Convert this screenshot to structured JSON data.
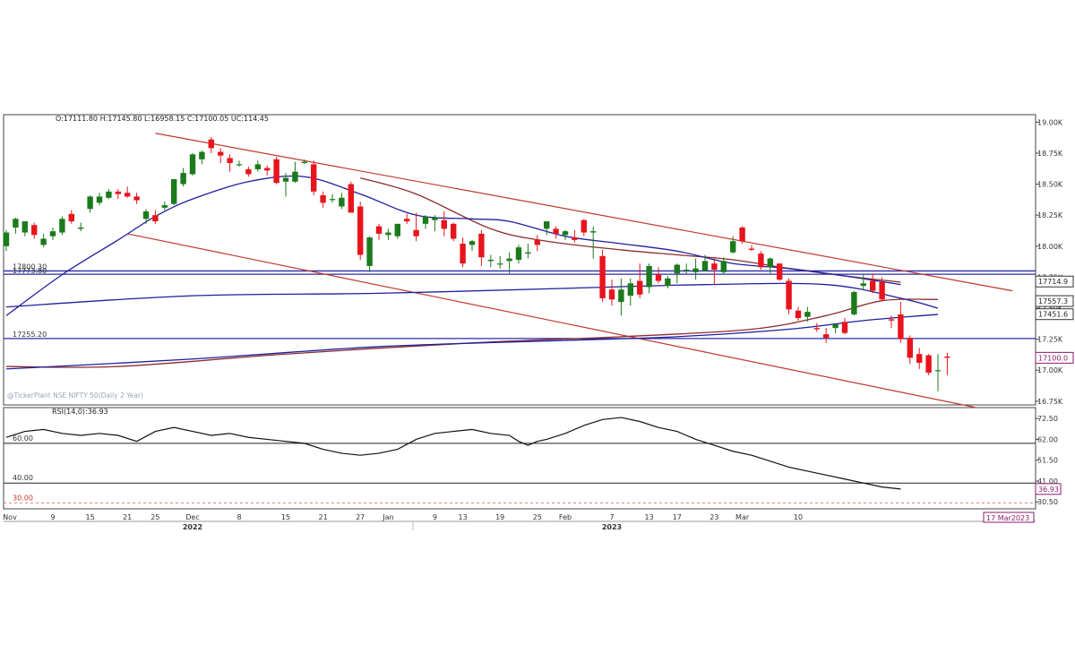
{
  "header": {
    "ohlc": "O:17111.80  H:17145.80  L:16958.15  C:17100.05  UC:114.45"
  },
  "watermark": "@TickerPlant NSE NIFTY 50(Daily 2 Year)",
  "rsi_header": "RSI(14,0):36.93",
  "colors": {
    "up": "#1b7a1b",
    "down": "#e8141c",
    "ma_brown": "#8b2d2d",
    "ma_blue": "#1f1f9e",
    "channel": "#c0392b",
    "hline": "#2a2aa8",
    "tag_border": "#8b1a6b",
    "text": "#333333"
  },
  "chart_data": [
    {
      "type": "candlestick",
      "title": "NSE NIFTY 50 (Daily)",
      "ylim": [
        16720,
        19060
      ],
      "y_ticks": [
        "19.00K",
        "18.75K",
        "18.50K",
        "18.25K",
        "18.00K",
        "17.75K",
        "17.50K",
        "17.25K",
        "17.00K",
        "16.75K"
      ],
      "y_tick_values": [
        19000,
        18750,
        18500,
        18250,
        18000,
        17750,
        17500,
        17250,
        17000,
        16750
      ],
      "x_tick_labels": [
        "Nov",
        "9",
        "15",
        "21",
        "25",
        "Dec",
        "8",
        "15",
        "21",
        "27",
        "Jan",
        "9",
        "13",
        "19",
        "25",
        "Feb",
        "7",
        "13",
        "17",
        "23",
        "Mar",
        "10"
      ],
      "x_tick_index": [
        0,
        5,
        9,
        13,
        16,
        20,
        25,
        30,
        34,
        38,
        41,
        46,
        49,
        53,
        57,
        60,
        65,
        69,
        72,
        76,
        79,
        85
      ],
      "year_labels": [
        "2022",
        "2023"
      ],
      "year_label_index": [
        20,
        65
      ],
      "date_tag": "17 Mar2023",
      "candles": [
        [
          18000,
          18130,
          17960,
          18110
        ],
        [
          18150,
          18230,
          18100,
          18220
        ],
        [
          18110,
          18200,
          18080,
          18200
        ],
        [
          18170,
          18190,
          18060,
          18090
        ],
        [
          18010,
          18100,
          17990,
          18060
        ],
        [
          18080,
          18150,
          18050,
          18120
        ],
        [
          18110,
          18240,
          18090,
          18220
        ],
        [
          18260,
          18290,
          18180,
          18200
        ],
        [
          18140,
          18190,
          18120,
          18150
        ],
        [
          18300,
          18410,
          18270,
          18400
        ],
        [
          18350,
          18430,
          18330,
          18400
        ],
        [
          18390,
          18460,
          18380,
          18440
        ],
        [
          18440,
          18460,
          18380,
          18420
        ],
        [
          18430,
          18480,
          18390,
          18400
        ],
        [
          18400,
          18430,
          18340,
          18370
        ],
        [
          18220,
          18300,
          18180,
          18280
        ],
        [
          18250,
          18290,
          18180,
          18200
        ],
        [
          18310,
          18360,
          18290,
          18330
        ],
        [
          18340,
          18540,
          18330,
          18540
        ],
        [
          18500,
          18630,
          18480,
          18590
        ],
        [
          18580,
          18750,
          18570,
          18740
        ],
        [
          18700,
          18770,
          18660,
          18760
        ],
        [
          18860,
          18880,
          18750,
          18790
        ],
        [
          18760,
          18790,
          18670,
          18730
        ],
        [
          18710,
          18740,
          18600,
          18670
        ],
        [
          18660,
          18690,
          18640,
          18660
        ],
        [
          18620,
          18640,
          18560,
          18580
        ],
        [
          18620,
          18690,
          18600,
          18660
        ],
        [
          18630,
          18650,
          18570,
          18610
        ],
        [
          18700,
          18720,
          18500,
          18510
        ],
        [
          18520,
          18590,
          18400,
          18550
        ],
        [
          18520,
          18680,
          18510,
          18600
        ],
        [
          18670,
          18700,
          18660,
          18680
        ],
        [
          18660,
          18690,
          18410,
          18440
        ],
        [
          18410,
          18440,
          18310,
          18350
        ],
        [
          18380,
          18420,
          18350,
          18380
        ],
        [
          18320,
          18430,
          18300,
          18390
        ],
        [
          18500,
          18520,
          18270,
          18270
        ],
        [
          18320,
          18360,
          17890,
          17930
        ],
        [
          17840,
          18080,
          17790,
          18070
        ],
        [
          18160,
          18180,
          18050,
          18100
        ],
        [
          18090,
          18140,
          18050,
          18110
        ],
        [
          18080,
          18180,
          18060,
          18180
        ],
        [
          18220,
          18260,
          18180,
          18200
        ],
        [
          18130,
          18270,
          18040,
          18080
        ],
        [
          18180,
          18250,
          18140,
          18240
        ],
        [
          18210,
          18250,
          18120,
          18230
        ],
        [
          18210,
          18280,
          18080,
          18140
        ],
        [
          18180,
          18190,
          18040,
          18060
        ],
        [
          18020,
          18070,
          17830,
          17860
        ],
        [
          18010,
          18050,
          17960,
          18040
        ],
        [
          18100,
          18130,
          17840,
          17910
        ],
        [
          17880,
          17930,
          17830,
          17890
        ],
        [
          17860,
          17920,
          17820,
          17860
        ],
        [
          17880,
          17950,
          17780,
          17900
        ],
        [
          17890,
          18010,
          17860,
          17990
        ],
        [
          17940,
          18020,
          17900,
          17950
        ],
        [
          18050,
          18090,
          17960,
          18010
        ],
        [
          18140,
          18200,
          18090,
          18200
        ],
        [
          18140,
          18160,
          18060,
          18100
        ],
        [
          18090,
          18130,
          18050,
          18120
        ],
        [
          18070,
          18130,
          18030,
          18050
        ],
        [
          18210,
          18220,
          18080,
          18110
        ],
        [
          18110,
          18160,
          17900,
          18120
        ],
        [
          17920,
          17970,
          17550,
          17580
        ],
        [
          17650,
          17730,
          17520,
          17570
        ],
        [
          17550,
          17740,
          17440,
          17650
        ],
        [
          17600,
          17740,
          17520,
          17700
        ],
        [
          17720,
          17860,
          17580,
          17610
        ],
        [
          17670,
          17860,
          17620,
          17840
        ],
        [
          17770,
          17830,
          17700,
          17720
        ],
        [
          17680,
          17760,
          17660,
          17740
        ],
        [
          17780,
          17860,
          17700,
          17850
        ],
        [
          17800,
          17860,
          17780,
          17810
        ],
        [
          17790,
          17900,
          17730,
          17820
        ],
        [
          17800,
          17930,
          17800,
          17880
        ],
        [
          17860,
          17900,
          17690,
          17810
        ],
        [
          17790,
          17910,
          17770,
          17880
        ],
        [
          17950,
          18080,
          17940,
          18040
        ],
        [
          18150,
          18160,
          18020,
          18040
        ],
        [
          17980,
          18010,
          17960,
          17970
        ],
        [
          17940,
          17960,
          17810,
          17830
        ],
        [
          17830,
          17910,
          17780,
          17900
        ],
        [
          17860,
          17860,
          17720,
          17730
        ],
        [
          17720,
          17740,
          17450,
          17490
        ],
        [
          17480,
          17510,
          17400,
          17420
        ],
        [
          17430,
          17510,
          17390,
          17470
        ],
        [
          17340,
          17380,
          17310,
          17330
        ],
        [
          17290,
          17340,
          17220,
          17260
        ],
        [
          17340,
          17370,
          17300,
          17370
        ],
        [
          17390,
          17420,
          17290,
          17300
        ],
        [
          17450,
          17640,
          17440,
          17630
        ],
        [
          17680,
          17770,
          17650,
          17700
        ],
        [
          17720,
          17780,
          17620,
          17640
        ],
        [
          17710,
          17750,
          17560,
          17570
        ],
        [
          17410,
          17440,
          17340,
          17400
        ],
        [
          17450,
          17550,
          17220,
          17250
        ],
        [
          17260,
          17280,
          17050,
          17100
        ],
        [
          17130,
          17180,
          17010,
          17060
        ],
        [
          17120,
          17130,
          16960,
          16980
        ],
        [
          17000,
          17130,
          16830,
          17000
        ],
        [
          17110,
          17140,
          16960,
          17100
        ]
      ],
      "series": [
        {
          "name": "",
          "type": "ma",
          "color": "brown",
          "values": [
            [
              38,
              18550
            ],
            [
              44,
              18420
            ],
            [
              52,
              18140
            ],
            [
              58,
              18040
            ],
            [
              66,
              17970
            ],
            [
              72,
              17930
            ],
            [
              78,
              17890
            ],
            [
              84,
              17820
            ],
            [
              90,
              17760
            ],
            [
              96,
              17710
            ]
          ]
        },
        {
          "name": "",
          "type": "ma",
          "color": "blue",
          "values": [
            [
              0,
              17440
            ],
            [
              6,
              17770
            ],
            [
              12,
              18050
            ],
            [
              16,
              18240
            ],
            [
              20,
              18380
            ],
            [
              26,
              18520
            ],
            [
              32,
              18560
            ],
            [
              38,
              18420
            ],
            [
              44,
              18250
            ],
            [
              50,
              18220
            ],
            [
              54,
              18200
            ],
            [
              60,
              18080
            ],
            [
              66,
              18020
            ],
            [
              72,
              17960
            ],
            [
              78,
              17860
            ],
            [
              84,
              17820
            ],
            [
              90,
              17760
            ],
            [
              96,
              17690
            ]
          ]
        },
        {
          "name": "",
          "type": "ma",
          "color": "brown",
          "values": [
            [
              0,
              17030
            ],
            [
              12,
              17030
            ],
            [
              30,
              17130
            ],
            [
              50,
              17220
            ],
            [
              66,
              17270
            ],
            [
              80,
              17330
            ],
            [
              88,
              17440
            ],
            [
              94,
              17560
            ],
            [
              100,
              17570
            ]
          ]
        },
        {
          "name": "",
          "type": "ma",
          "color": "blue",
          "values": [
            [
              0,
              17010
            ],
            [
              20,
              17090
            ],
            [
              40,
              17190
            ],
            [
              60,
              17240
            ],
            [
              72,
              17270
            ],
            [
              84,
              17330
            ],
            [
              92,
              17400
            ],
            [
              100,
              17450
            ]
          ]
        },
        {
          "name": "",
          "type": "ma",
          "color": "blue",
          "values": [
            [
              0,
              17510
            ],
            [
              20,
              17600
            ],
            [
              40,
              17620
            ],
            [
              60,
              17660
            ],
            [
              75,
              17690
            ],
            [
              88,
              17690
            ],
            [
              96,
              17580
            ],
            [
              100,
              17500
            ]
          ]
        }
      ],
      "trendlines": [
        {
          "from": [
            16,
            18910
          ],
          "to": [
            108,
            17640
          ]
        },
        {
          "from": [
            13,
            18100
          ],
          "to": [
            104,
            16700
          ]
        }
      ],
      "hlines": [
        {
          "value": 17800.3,
          "label": "17800.30"
        },
        {
          "value": 17773.8,
          "label": "17773.80"
        },
        {
          "value": 17255.2,
          "label": "17255.20"
        }
      ],
      "value_tags": [
        {
          "value": 17714.9,
          "label": "17714.9"
        },
        {
          "value": 17557.3,
          "label": "17557.3"
        },
        {
          "value": 17451.6,
          "label": "17451.6"
        },
        {
          "value": 17100.05,
          "label": "17100.0"
        }
      ]
    },
    {
      "type": "line",
      "title": "RSI(14,0)",
      "ylim": [
        27,
        78
      ],
      "y_ticks": [
        "72.50",
        "62.00",
        "51.50",
        "41.00",
        "30.50"
      ],
      "y_tick_values": [
        72.5,
        62.0,
        51.5,
        41.0,
        30.5
      ],
      "levels": [
        {
          "value": 60,
          "label": "60.00",
          "style": "solid"
        },
        {
          "value": 40,
          "label": "40.00",
          "style": "solid"
        },
        {
          "value": 30,
          "label": "30.00",
          "style": "dashed"
        }
      ],
      "current_label": "36.93",
      "series": [
        {
          "name": "RSI",
          "values": [
            [
              0,
              63
            ],
            [
              2,
              66
            ],
            [
              4,
              67
            ],
            [
              6,
              65
            ],
            [
              8,
              64
            ],
            [
              10,
              65
            ],
            [
              12,
              64
            ],
            [
              14,
              61
            ],
            [
              16,
              66
            ],
            [
              18,
              68
            ],
            [
              20,
              66
            ],
            [
              22,
              64
            ],
            [
              24,
              65
            ],
            [
              26,
              63
            ],
            [
              28,
              62
            ],
            [
              30,
              61
            ],
            [
              32,
              60
            ],
            [
              34,
              57
            ],
            [
              36,
              55
            ],
            [
              38,
              54
            ],
            [
              40,
              55
            ],
            [
              42,
              57
            ],
            [
              44,
              62
            ],
            [
              46,
              65
            ],
            [
              48,
              66
            ],
            [
              50,
              67
            ],
            [
              52,
              65
            ],
            [
              54,
              64
            ],
            [
              55,
              61
            ],
            [
              56,
              59
            ],
            [
              57,
              61
            ],
            [
              58,
              62
            ],
            [
              60,
              65
            ],
            [
              62,
              69
            ],
            [
              64,
              72
            ],
            [
              66,
              73
            ],
            [
              68,
              71
            ],
            [
              70,
              68
            ],
            [
              72,
              66
            ],
            [
              74,
              62
            ],
            [
              76,
              59
            ],
            [
              78,
              56
            ],
            [
              80,
              54
            ],
            [
              82,
              51
            ],
            [
              84,
              48
            ],
            [
              86,
              46
            ],
            [
              88,
              44
            ],
            [
              90,
              42
            ],
            [
              92,
              40
            ],
            [
              94,
              38
            ],
            [
              96,
              37
            ]
          ]
        }
      ]
    }
  ]
}
